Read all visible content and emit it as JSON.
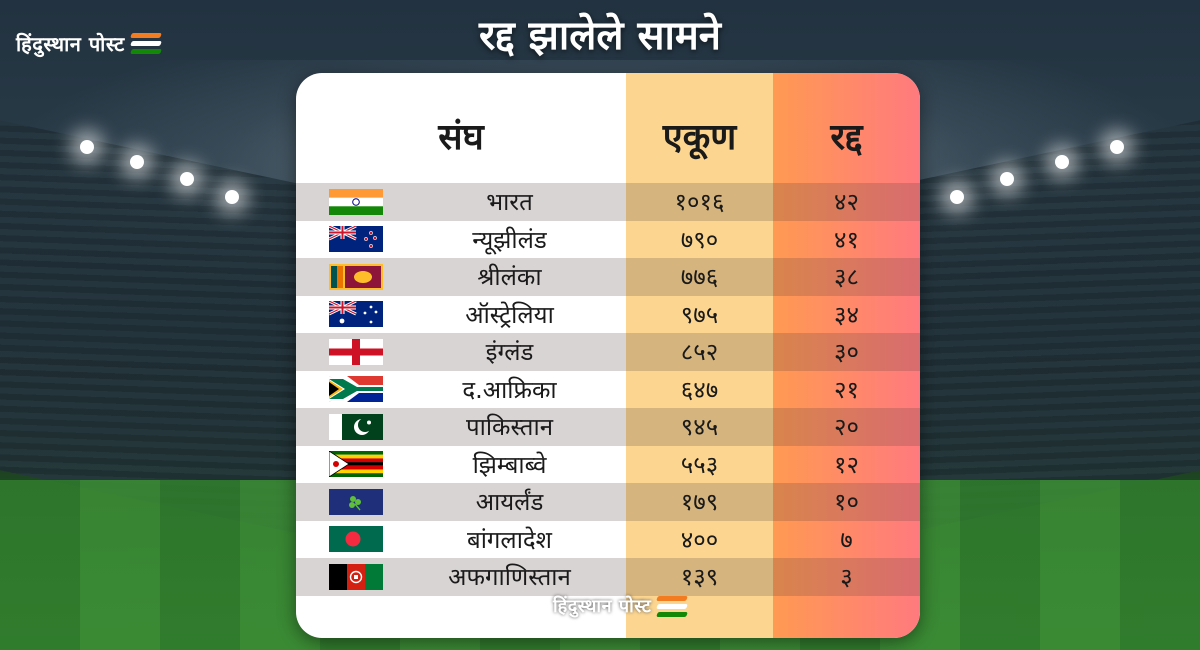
{
  "brand": {
    "logo_text": "हिंदुस्थान पोस्ट",
    "stripe_colors": [
      "#f47c20",
      "#ffffff",
      "#138808"
    ]
  },
  "title": "रद्द झालेले सामने",
  "table": {
    "headers": {
      "team": "संघ",
      "total": "एकूण",
      "cancelled": "रद्द"
    },
    "rows": [
      {
        "flag": "india-flag",
        "team": "भारत",
        "total": "१०१६",
        "cancelled": "४२"
      },
      {
        "flag": "new-zealand-flag",
        "team": "न्यूझीलंड",
        "total": "७९०",
        "cancelled": "४१"
      },
      {
        "flag": "sri-lanka-flag",
        "team": "श्रीलंका",
        "total": "७७६",
        "cancelled": "३८"
      },
      {
        "flag": "australia-flag",
        "team": "ऑस्ट्रेलिया",
        "total": "९७५",
        "cancelled": "३४"
      },
      {
        "flag": "england-flag",
        "team": "इंग्लंड",
        "total": "८५२",
        "cancelled": "३०"
      },
      {
        "flag": "south-africa-flag",
        "team": "द.आफ्रिका",
        "total": "६४७",
        "cancelled": "२१"
      },
      {
        "flag": "pakistan-flag",
        "team": "पाकिस्तान",
        "total": "९४५",
        "cancelled": "२०"
      },
      {
        "flag": "zimbabwe-flag",
        "team": "झिम्बाब्वे",
        "total": "५५३",
        "cancelled": "१२"
      },
      {
        "flag": "ireland-flag",
        "team": "आयर्लंड",
        "total": "१७९",
        "cancelled": "१०"
      },
      {
        "flag": "bangladesh-flag",
        "team": "बांगलादेश",
        "total": "४००",
        "cancelled": "७"
      },
      {
        "flag": "afghanistan-flag",
        "team": "अफगाणिस्तान",
        "total": "१३९",
        "cancelled": "३"
      }
    ]
  }
}
